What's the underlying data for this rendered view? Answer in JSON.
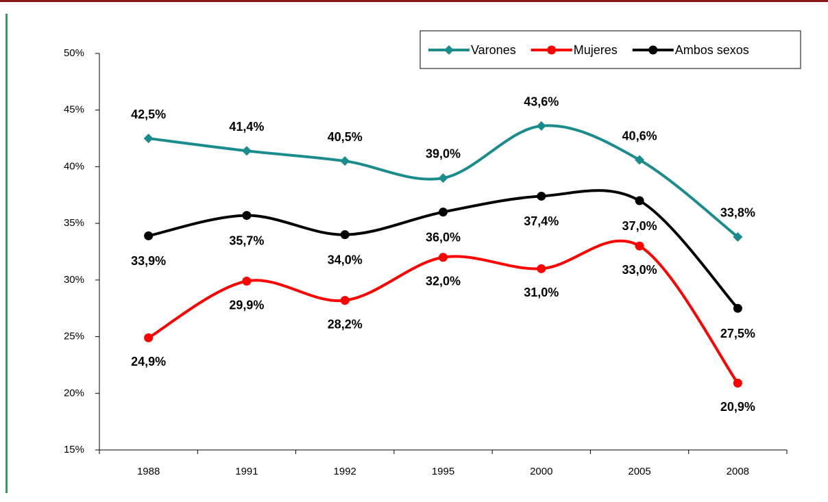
{
  "chart_data": {
    "type": "line",
    "categories": [
      "1988",
      "1991",
      "1992",
      "1995",
      "2000",
      "2005",
      "2008"
    ],
    "series": [
      {
        "name": "Varones",
        "color": "#1a8c8c",
        "marker": "diamond",
        "values": [
          42.5,
          41.4,
          40.5,
          39.0,
          43.6,
          40.6,
          33.8
        ],
        "value_labels": [
          "42,5%",
          "41,4%",
          "40,5%",
          "39,0%",
          "43,6%",
          "40,6%",
          "33,8%"
        ]
      },
      {
        "name": "Mujeres",
        "color": "#ff0000",
        "marker": "circle",
        "values": [
          24.9,
          29.9,
          28.2,
          32.0,
          31.0,
          33.0,
          20.9
        ],
        "value_labels": [
          "24,9%",
          "29,9%",
          "28,2%",
          "32,0%",
          "31,0%",
          "33,0%",
          "20,9%"
        ]
      },
      {
        "name": "Ambos sexos",
        "color": "#000000",
        "marker": "circle",
        "values": [
          33.9,
          35.7,
          34.0,
          36.0,
          37.4,
          37.0,
          27.5
        ],
        "value_labels": [
          "33,9%",
          "35,7%",
          "34,0%",
          "36,0%",
          "37,4%",
          "37,0%",
          "27,5%"
        ]
      }
    ],
    "ylim": [
      15,
      50
    ],
    "yticks": [
      {
        "value": 15,
        "label": "15%"
      },
      {
        "value": 20,
        "label": "20%"
      },
      {
        "value": 25,
        "label": "25%"
      },
      {
        "value": 30,
        "label": "30%"
      },
      {
        "value": 35,
        "label": "35%"
      },
      {
        "value": 40,
        "label": "40%"
      },
      {
        "value": 45,
        "label": "45%"
      },
      {
        "value": 50,
        "label": "50%"
      }
    ],
    "legend": "top-right",
    "grid": false
  }
}
